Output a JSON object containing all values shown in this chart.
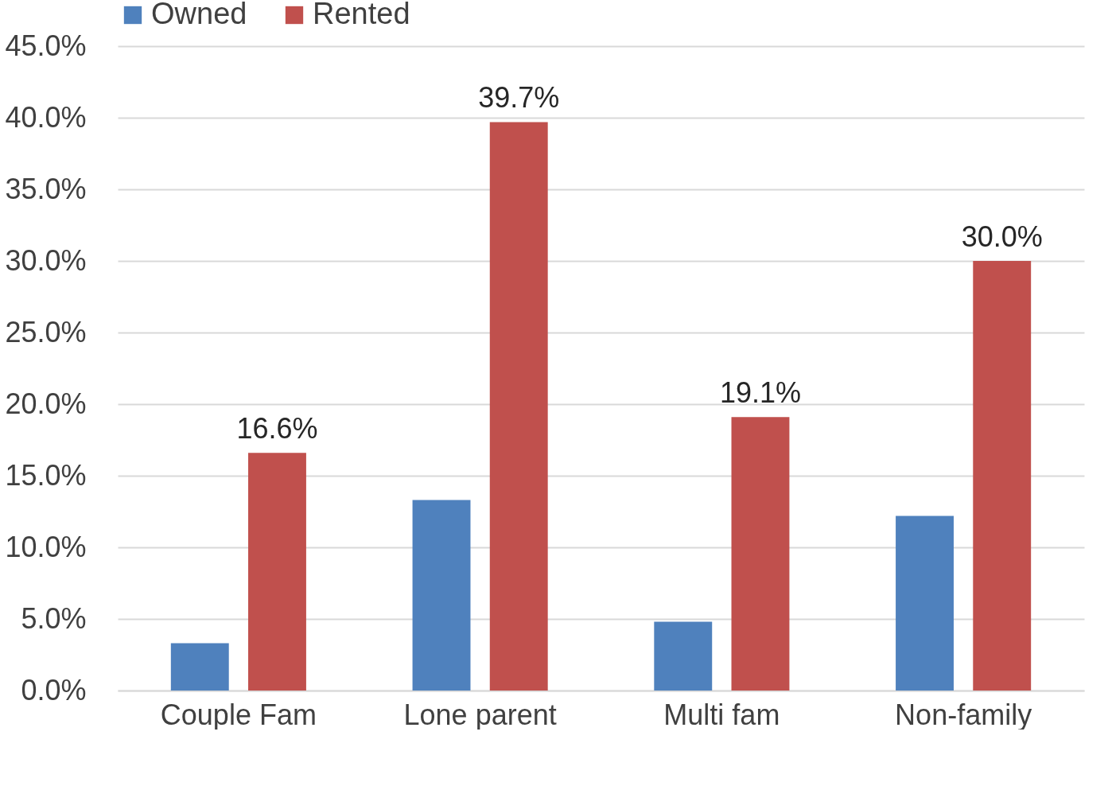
{
  "chart_data": {
    "type": "bar",
    "categories": [
      "Couple Fam",
      "Lone parent",
      "Multi fam",
      "Non-family"
    ],
    "series": [
      {
        "name": "Owned",
        "color": "#4f81bd",
        "values": [
          3.3,
          13.3,
          4.8,
          12.2
        ]
      },
      {
        "name": "Rented",
        "color": "#c0504d",
        "values": [
          16.6,
          39.7,
          19.1,
          30.0
        ],
        "value_labels": [
          "16.6%",
          "39.7%",
          "19.1%",
          "30.0%"
        ]
      }
    ],
    "ylim": [
      0,
      45
    ],
    "yticks": [
      {
        "value": 0,
        "label": "0.0%"
      },
      {
        "value": 5,
        "label": "5.0%"
      },
      {
        "value": 10,
        "label": "10.0%"
      },
      {
        "value": 15,
        "label": "15.0%"
      },
      {
        "value": 20,
        "label": "20.0%"
      },
      {
        "value": 25,
        "label": "25.0%"
      },
      {
        "value": 30,
        "label": "30.0%"
      },
      {
        "value": 35,
        "label": "35.0%"
      },
      {
        "value": 40,
        "label": "40.0%"
      },
      {
        "value": 45,
        "label": "45.0%"
      }
    ],
    "grid": "y",
    "legend": "top"
  }
}
